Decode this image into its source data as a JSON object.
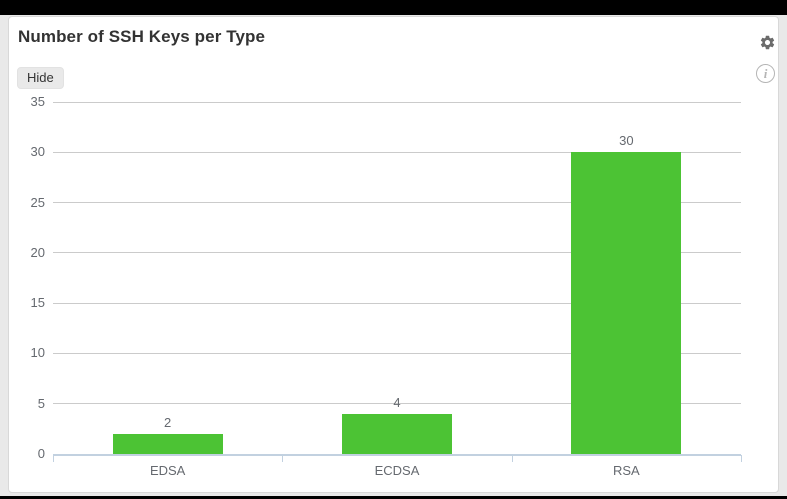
{
  "header": {
    "title": "Number of SSH Keys per Type"
  },
  "toolbar": {
    "hide_label": "Hide"
  },
  "icons": {
    "settings": "gear-icon",
    "info_glyph": "i"
  },
  "colors": {
    "bar": "#4cc334",
    "grid": "#cbcbcb",
    "axis": "#c2d1e0",
    "chart_text": "#65696f"
  },
  "chart_data": {
    "type": "bar",
    "title": "Number of SSH Keys per Type",
    "categories": [
      "EDSA",
      "ECDSA",
      "RSA"
    ],
    "values": [
      2,
      4,
      30
    ],
    "bar_labels": [
      "2",
      "4",
      "30"
    ],
    "yticks": [
      0,
      5,
      10,
      15,
      20,
      25,
      30,
      35
    ],
    "ylim": [
      0,
      35
    ],
    "xlabel": "",
    "ylabel": "",
    "grid": true,
    "legend": "none",
    "bar_color": "#4cc334"
  }
}
